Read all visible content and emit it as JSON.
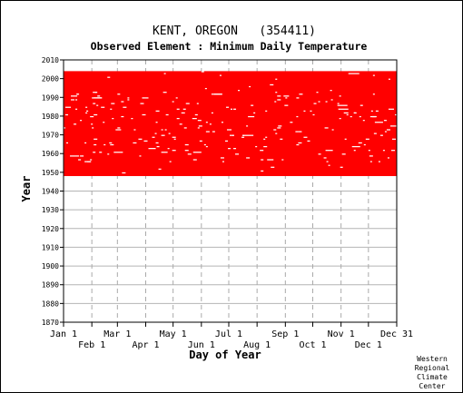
{
  "chart_data": {
    "type": "heatmap",
    "title": "KENT, OREGON   (354411)",
    "subtitle": "Observed Element : Minimum Daily Temperature",
    "xlabel": "Day of Year",
    "ylabel": "Year",
    "ylim": [
      1870,
      2010
    ],
    "y_ticks": [
      1870,
      1880,
      1890,
      1900,
      1910,
      1920,
      1930,
      1940,
      1950,
      1960,
      1970,
      1980,
      1990,
      2000,
      2010
    ],
    "x_ticks_top_row": [
      "Jan 1",
      "Mar 1",
      "May 1",
      "Jul 1",
      "Sep 1",
      "Nov 1",
      "Dec 31"
    ],
    "x_ticks_bottom_row": [
      "Feb 1",
      "Apr 1",
      "Jun 1",
      "Aug 1",
      "Oct 1",
      "Dec 1"
    ],
    "data_color": "#ff0000",
    "grid": true,
    "record_start_year": 1948,
    "record_end_year": 2003,
    "records_present": "nearly continuous daily observations from 1948 through 2003 with scattered missing days"
  },
  "credit": {
    "line1": "Western",
    "line2": "Regional",
    "line3": "Climate",
    "line4": "Center"
  }
}
